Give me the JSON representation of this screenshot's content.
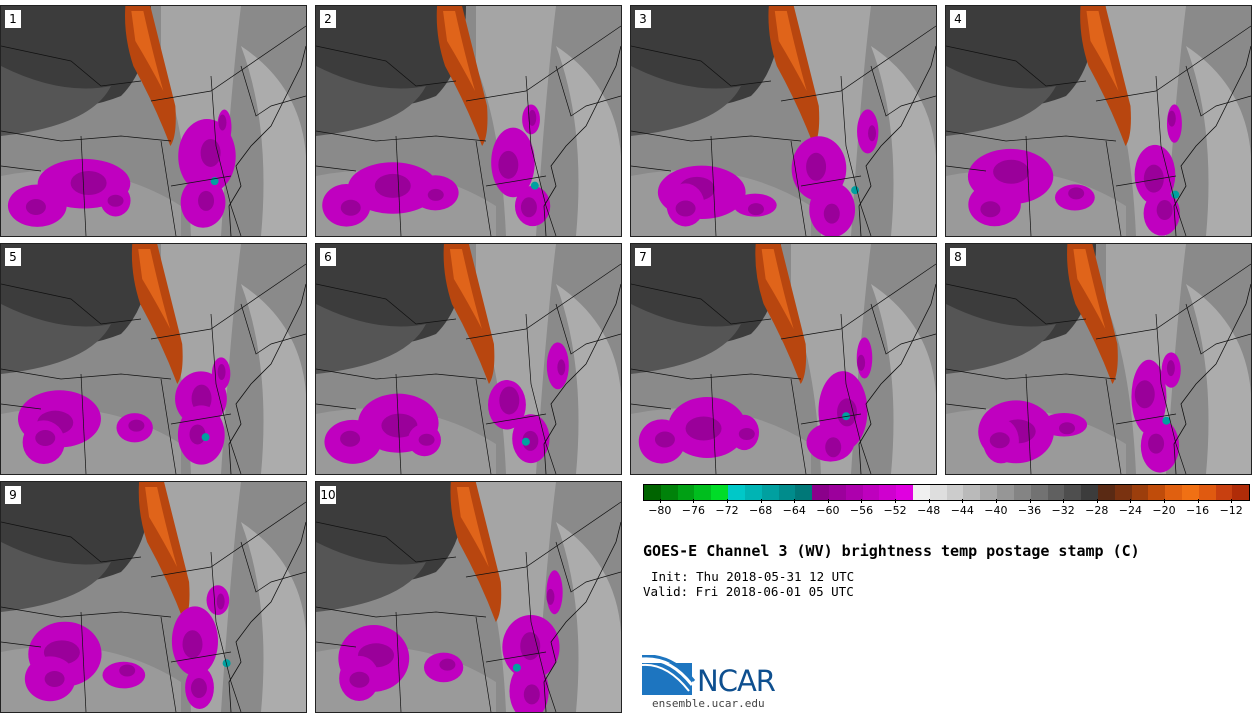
{
  "title": "GOES-E Channel 3 (WV) brightness temp postage stamp (C)",
  "init": "Init: Thu 2018-05-31 12 UTC",
  "valid": "Valid: Fri 2018-06-01 05 UTC",
  "logo_text": "NCAR",
  "url": "ensemble.ucar.edu",
  "panels": [
    "1",
    "2",
    "3",
    "4",
    "5",
    "6",
    "7",
    "8",
    "9",
    "10"
  ],
  "colorbar": {
    "ticks": [
      "−80",
      "−76",
      "−72",
      "−68",
      "−64",
      "−60",
      "−56",
      "−52",
      "−48",
      "−44",
      "−40",
      "−36",
      "−32",
      "−28",
      "−24",
      "−20",
      "−16",
      "−12"
    ],
    "min": -82,
    "max": -10,
    "colors": [
      "#006400",
      "#00820a",
      "#00a014",
      "#00be1e",
      "#00dc28",
      "#00c8c8",
      "#00b4b4",
      "#00a0a0",
      "#008c8c",
      "#007878",
      "#8b008b",
      "#9c009c",
      "#ad00ad",
      "#be00be",
      "#cf00cf",
      "#e000e0",
      "#f0f0f0",
      "#dedede",
      "#cccccc",
      "#bababa",
      "#a8a8a8",
      "#969696",
      "#848484",
      "#727272",
      "#606060",
      "#4e4e4e",
      "#3c3c3c",
      "#5a2a14",
      "#7a3210",
      "#9c3e0c",
      "#c04c0a",
      "#e06010",
      "#f07014",
      "#e05a10",
      "#c84010",
      "#b02c08"
    ]
  }
}
